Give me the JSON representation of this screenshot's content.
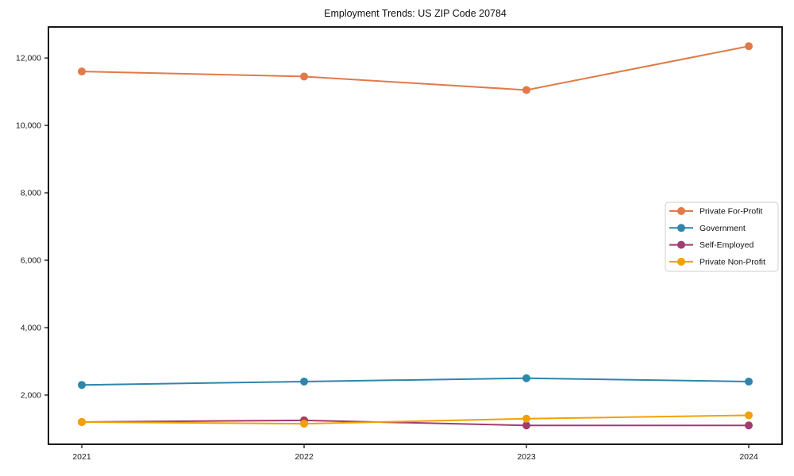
{
  "chart_data": {
    "type": "line",
    "title": "Employment Trends: US ZIP Code 20784",
    "xlabel": "",
    "ylabel": "",
    "x": [
      2021,
      2022,
      2023,
      2024
    ],
    "x_tick_labels": [
      "2021",
      "2022",
      "2023",
      "2024"
    ],
    "series": [
      {
        "name": "Private For-Profit",
        "color": "#E17A48",
        "values": [
          11600,
          11450,
          11050,
          12350
        ]
      },
      {
        "name": "Government",
        "color": "#2E86AB",
        "values": [
          2300,
          2400,
          2500,
          2400
        ]
      },
      {
        "name": "Self-Employed",
        "color": "#A23B72",
        "values": [
          1200,
          1250,
          1100,
          1100
        ]
      },
      {
        "name": "Private Non-Profit",
        "color": "#F2A104",
        "values": [
          1200,
          1150,
          1300,
          1400
        ]
      }
    ],
    "y_ticks": [
      2000,
      4000,
      6000,
      8000,
      10000,
      12000
    ],
    "y_tick_labels": [
      "2,000",
      "4,000",
      "6,000",
      "8,000",
      "10,000",
      "12,000"
    ],
    "ylim": [
      540,
      12920
    ],
    "xlim": [
      2020.85,
      2024.15
    ],
    "grid": false,
    "legend_position": "middle-right",
    "marker": "circle",
    "axis_color": "#000000",
    "tick_label_color": "#1a1a1a",
    "legend_border_color": "#cccccc",
    "legend_background": "#ffffff"
  }
}
